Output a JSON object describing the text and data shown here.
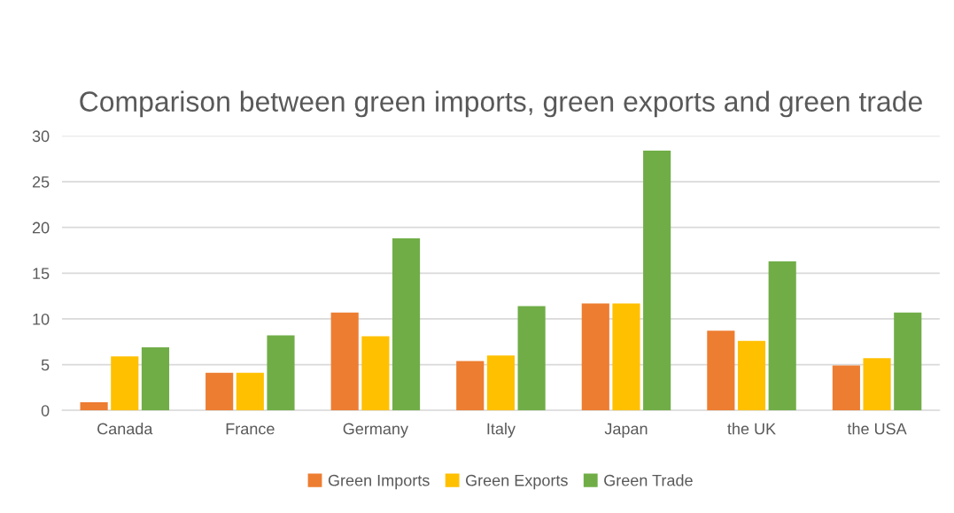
{
  "chart_data": {
    "type": "bar",
    "title": "Comparison between green imports, green exports and green trade",
    "categories": [
      "Canada",
      "France",
      "Germany",
      "Italy",
      "Japan",
      "the UK",
      "the USA"
    ],
    "series": [
      {
        "name": "Green Imports",
        "color": "#ed7d31",
        "values": [
          0.9,
          4.1,
          10.7,
          5.4,
          11.7,
          8.7,
          4.9
        ]
      },
      {
        "name": "Green Exports",
        "color": "#ffc000",
        "values": [
          5.9,
          4.1,
          8.1,
          6.0,
          11.7,
          7.6,
          5.7
        ]
      },
      {
        "name": "Green Trade",
        "color": "#70ad47",
        "values": [
          6.9,
          8.2,
          18.8,
          11.4,
          28.4,
          16.3,
          10.7
        ]
      }
    ],
    "ylim": [
      0,
      30
    ],
    "yticks": [
      0,
      5,
      10,
      15,
      20,
      25,
      30
    ],
    "grid": "y",
    "legend": "bottom"
  }
}
